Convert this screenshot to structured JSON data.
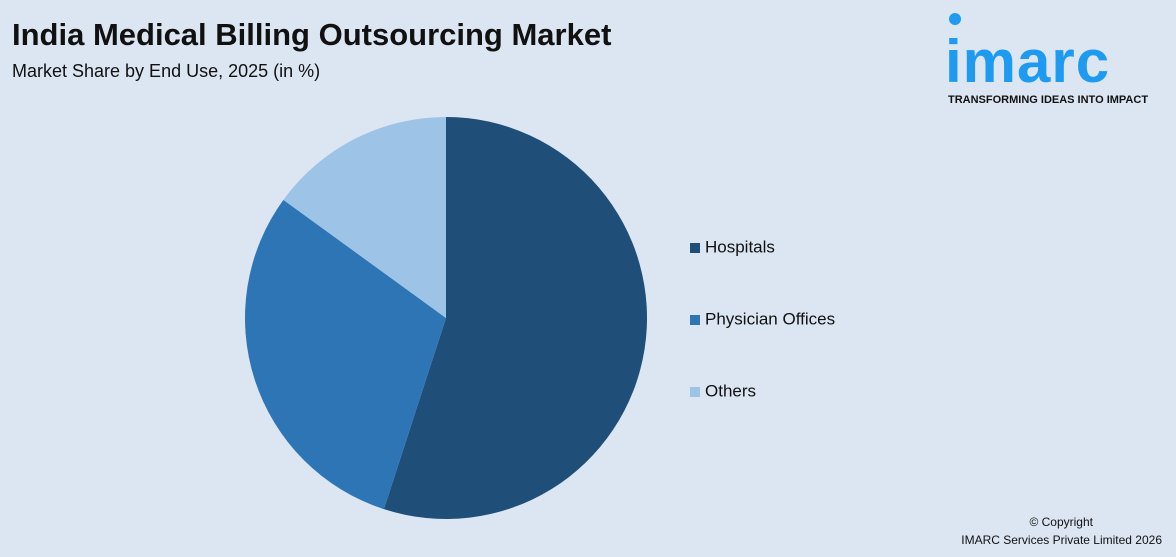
{
  "chart_data": {
    "type": "pie",
    "title": "India Medical Billing Outsourcing Market",
    "subtitle": "Market Share by End Use, 2025 (in %)",
    "categories": [
      "Hospitals",
      "Physician Offices",
      "Others"
    ],
    "values": [
      55,
      30,
      15
    ],
    "colors": [
      "#1f4e79",
      "#2e75b6",
      "#9dc3e6"
    ],
    "legend": "right"
  },
  "logo": {
    "name": "imarc",
    "tagline": "TRANSFORMING IDEAS INTO IMPACT"
  },
  "footer": {
    "copyright": "© Copyright",
    "company": "IMARC Services Private Limited 2026"
  }
}
